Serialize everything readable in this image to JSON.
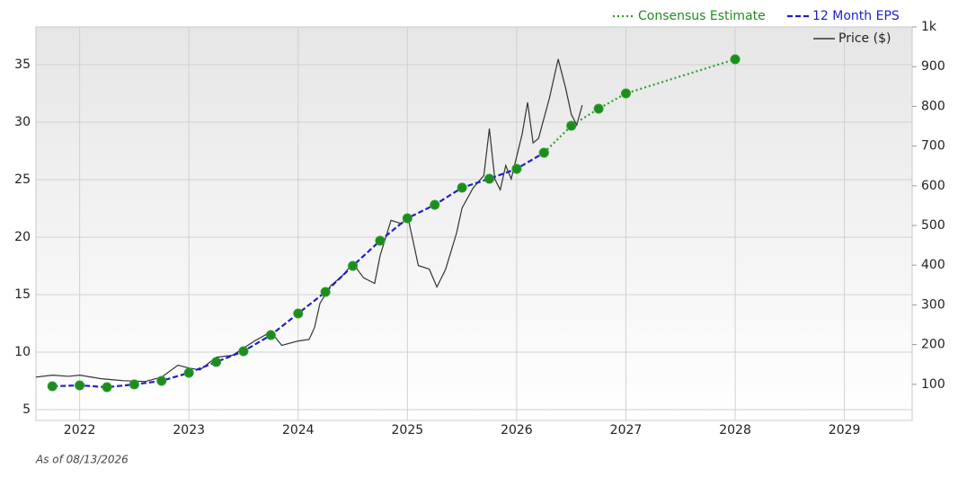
{
  "chart_data": {
    "type": "line",
    "note": "As of 08/13/2026",
    "xlim": [
      2021.6,
      2029.62
    ],
    "xticks": [
      2022,
      2023,
      2024,
      2025,
      2026,
      2027,
      2028,
      2029
    ],
    "ylim": [
      4.06,
      38.28
    ],
    "yticks": [
      5,
      10,
      15,
      20,
      25,
      30,
      35
    ],
    "y2lim": [
      9,
      1000
    ],
    "y2ticks": [
      100,
      200,
      300,
      400,
      500,
      600,
      700,
      800,
      900,
      {
        "value": 1000,
        "label": "1k"
      }
    ],
    "grid": true,
    "series": [
      {
        "name": "Consensus Estimate",
        "color": "#2ca02c",
        "dash": "dotted",
        "markers": true,
        "x": [
          2026.25,
          2026.5,
          2026.75,
          2027,
          2028
        ],
        "values": [
          27.34,
          29.69,
          31.17,
          32.5,
          35.47
        ]
      },
      {
        "name": "12 Month EPS",
        "color": "#1f1fc8",
        "dash": "dashed",
        "markers": true,
        "x": [
          2021.75,
          2022,
          2022.25,
          2022.5,
          2022.75,
          2023,
          2023.25,
          2023.5,
          2023.75,
          2024,
          2024.25,
          2024.5,
          2024.75,
          2025,
          2025.25,
          2025.5,
          2025.75,
          2026,
          2026.25
        ],
        "values": [
          7.03,
          7.11,
          6.95,
          7.19,
          7.5,
          8.2,
          9.14,
          10.08,
          11.48,
          13.36,
          15.23,
          17.5,
          19.69,
          21.64,
          22.81,
          24.3,
          25.08,
          25.94,
          27.34
        ]
      },
      {
        "name": "Price ($)",
        "color": "#333333",
        "dash": "solid",
        "markers": false,
        "axis": "y2",
        "x": [
          2021.6,
          2021.75,
          2021.9,
          2022.0,
          2022.2,
          2022.4,
          2022.6,
          2022.75,
          2022.9,
          2023.0,
          2023.1,
          2023.25,
          2023.4,
          2023.5,
          2023.6,
          2023.75,
          2023.85,
          2024.0,
          2024.1,
          2024.15,
          2024.2,
          2024.3,
          2024.4,
          2024.5,
          2024.6,
          2024.7,
          2024.75,
          2024.85,
          2024.95,
          2025.0,
          2025.05,
          2025.1,
          2025.2,
          2025.27,
          2025.35,
          2025.45,
          2025.5,
          2025.6,
          2025.7,
          2025.75,
          2025.8,
          2025.85,
          2025.9,
          2025.95,
          2026.05,
          2026.1,
          2026.15,
          2026.2,
          2026.3,
          2026.38,
          2026.45,
          2026.5,
          2026.55,
          2026.6
        ],
        "values": [
          118,
          123,
          120,
          123,
          114,
          109,
          107,
          118,
          148,
          141,
          136,
          168,
          173,
          191,
          209,
          232,
          198,
          209,
          213,
          243,
          304,
          349,
          372,
          404,
          368,
          354,
          424,
          513,
          504,
          526,
          463,
          399,
          390,
          345,
          390,
          481,
          544,
          594,
          626,
          744,
          617,
          590,
          651,
          617,
          730,
          810,
          708,
          719,
          821,
          919,
          844,
          780,
          753,
          803
        ]
      }
    ]
  }
}
